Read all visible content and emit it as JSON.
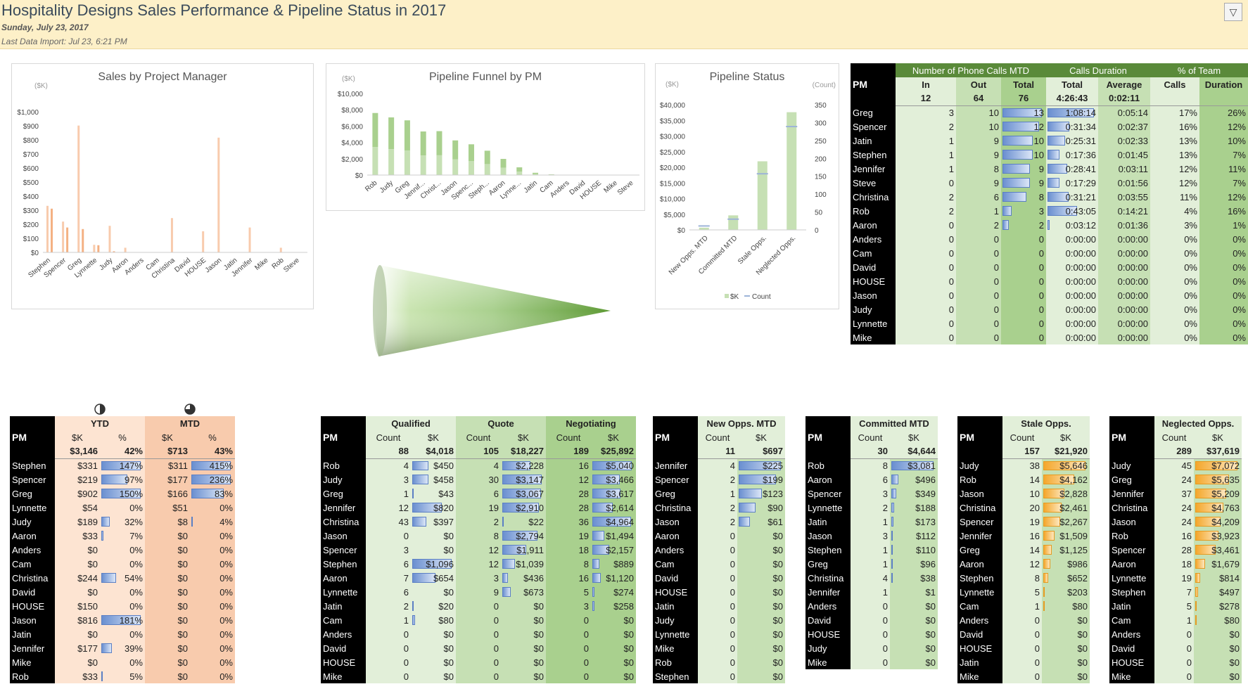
{
  "header": {
    "title": "Hospitality Designs Sales Performance & Pipeline Status in 2017",
    "date": "Sunday, July 23, 2017",
    "import": "Last Data Import: Jul 23, 6:21 PM",
    "filter_icon": "▽"
  },
  "chart_data": [
    {
      "type": "bar",
      "title": "Sales by Project Manager",
      "ylabel": "($K)",
      "categories": [
        "Stephen",
        "Spencer",
        "Greg",
        "Lynnette",
        "Judy",
        "Aaron",
        "Anders",
        "Cam",
        "Christina",
        "David",
        "HOUSE",
        "Jason",
        "Jatin",
        "Jennifer",
        "Mike",
        "Rob",
        "Steve"
      ],
      "ylim": [
        0,
        1000
      ],
      "yticks": [
        "$0",
        "$100",
        "$200",
        "$300",
        "$400",
        "$500",
        "$600",
        "$700",
        "$800",
        "$900",
        "$1,000"
      ],
      "series": [
        {
          "values": [
            331,
            219,
            902,
            54,
            189,
            33,
            0,
            0,
            244,
            0,
            150,
            816,
            0,
            177,
            0,
            33,
            0
          ]
        },
        {
          "values": [
            311,
            177,
            166,
            51,
            8,
            0,
            0,
            0,
            0,
            0,
            0,
            0,
            0,
            0,
            0,
            0,
            0
          ]
        }
      ]
    },
    {
      "type": "bar",
      "title": "Pipeline Funnel by PM",
      "ylabel": "($K)",
      "categories": [
        "Rob",
        "Judy",
        "Greg",
        "Jennif...",
        "Christ...",
        "Jason",
        "Spenc...",
        "Steph...",
        "Aaron",
        "Lynne...",
        "Jatin",
        "Cam",
        "Anders",
        "David",
        "HOUSE",
        "Mike",
        "Steve"
      ],
      "ylim": [
        0,
        10000
      ],
      "yticks": [
        "$0",
        "$2,000",
        "$4,000",
        "$6,000",
        "$8,000",
        "$10,000"
      ],
      "series": [
        {
          "values": [
            7610,
            7071,
            6710,
            5344,
            5384,
            4249,
            3771,
            2986,
            1980,
            947,
            278,
            80,
            0,
            0,
            0,
            0,
            0
          ]
        }
      ]
    },
    {
      "type": "bar",
      "title": "Pipeline Status",
      "ylabel": "($K)",
      "y2label": "(Count)",
      "categories": [
        "New Opps. MTD",
        "Committed MTD",
        "Stale Opps.",
        "Neglected Opps."
      ],
      "ylim": [
        0,
        40000
      ],
      "y2lim": [
        0,
        350
      ],
      "yticks": [
        "$0",
        "$5,000",
        "$10,000",
        "$15,000",
        "$20,000",
        "$25,000",
        "$30,000",
        "$35,000",
        "$40,000"
      ],
      "y2ticks": [
        "0",
        "50",
        "100",
        "150",
        "200",
        "250",
        "300",
        "350"
      ],
      "legend": [
        "$K",
        "Count"
      ],
      "series": [
        {
          "name": "$K",
          "values": [
            697,
            4644,
            21920,
            37619
          ]
        },
        {
          "name": "Count",
          "values": [
            11,
            30,
            157,
            289
          ]
        }
      ]
    }
  ],
  "calls": {
    "pm_label": "PM",
    "group_headers": [
      "Number of Phone Calls MTD",
      "Calls Duration",
      "% of Team"
    ],
    "col_headers": [
      "In",
      "Out",
      "Total",
      "Total",
      "Average",
      "Calls",
      "Duration"
    ],
    "totals": [
      "12",
      "64",
      "76",
      "4:26:43",
      "0:02:11",
      "",
      ""
    ],
    "rows": [
      [
        "Greg",
        "3",
        "10",
        "13",
        "1:08:14",
        "0:05:14",
        "17%",
        "26%"
      ],
      [
        "Spencer",
        "2",
        "10",
        "12",
        "0:31:34",
        "0:02:37",
        "16%",
        "12%"
      ],
      [
        "Jatin",
        "1",
        "9",
        "10",
        "0:25:31",
        "0:02:33",
        "13%",
        "10%"
      ],
      [
        "Stephen",
        "1",
        "9",
        "10",
        "0:17:36",
        "0:01:45",
        "13%",
        "7%"
      ],
      [
        "Jennifer",
        "1",
        "8",
        "9",
        "0:28:41",
        "0:03:11",
        "12%",
        "11%"
      ],
      [
        "Steve",
        "0",
        "9",
        "9",
        "0:17:29",
        "0:01:56",
        "12%",
        "7%"
      ],
      [
        "Christina",
        "2",
        "6",
        "8",
        "0:31:21",
        "0:03:55",
        "11%",
        "12%"
      ],
      [
        "Rob",
        "2",
        "1",
        "3",
        "0:43:05",
        "0:14:21",
        "4%",
        "16%"
      ],
      [
        "Aaron",
        "0",
        "2",
        "2",
        "0:03:12",
        "0:01:36",
        "3%",
        "1%"
      ],
      [
        "Anders",
        "0",
        "0",
        "0",
        "0:00:00",
        "0:00:00",
        "0%",
        "0%"
      ],
      [
        "Cam",
        "0",
        "0",
        "0",
        "0:00:00",
        "0:00:00",
        "0%",
        "0%"
      ],
      [
        "David",
        "0",
        "0",
        "0",
        "0:00:00",
        "0:00:00",
        "0%",
        "0%"
      ],
      [
        "HOUSE",
        "0",
        "0",
        "0",
        "0:00:00",
        "0:00:00",
        "0%",
        "0%"
      ],
      [
        "Jason",
        "0",
        "0",
        "0",
        "0:00:00",
        "0:00:00",
        "0%",
        "0%"
      ],
      [
        "Judy",
        "0",
        "0",
        "0",
        "0:00:00",
        "0:00:00",
        "0%",
        "0%"
      ],
      [
        "Lynnette",
        "0",
        "0",
        "0",
        "0:00:00",
        "0:00:00",
        "0%",
        "0%"
      ],
      [
        "Mike",
        "0",
        "0",
        "0",
        "0:00:00",
        "0:00:00",
        "0%",
        "0%"
      ]
    ]
  },
  "sales": {
    "pm_label": "PM",
    "ytd_label": "YTD",
    "mtd_label": "MTD",
    "sub": [
      "$K",
      "%",
      "$K",
      "%"
    ],
    "totals": [
      "$3,146",
      "42%",
      "$713",
      "43%"
    ],
    "rows": [
      [
        "Stephen",
        "$331",
        "147%",
        "$311",
        "415%"
      ],
      [
        "Spencer",
        "$219",
        "97%",
        "$177",
        "236%"
      ],
      [
        "Greg",
        "$902",
        "150%",
        "$166",
        "83%"
      ],
      [
        "Lynnette",
        "$54",
        "0%",
        "$51",
        "0%"
      ],
      [
        "Judy",
        "$189",
        "32%",
        "$8",
        "4%"
      ],
      [
        "Aaron",
        "$33",
        "7%",
        "$0",
        "0%"
      ],
      [
        "Anders",
        "$0",
        "0%",
        "$0",
        "0%"
      ],
      [
        "Cam",
        "$0",
        "0%",
        "$0",
        "0%"
      ],
      [
        "Christina",
        "$244",
        "54%",
        "$0",
        "0%"
      ],
      [
        "David",
        "$0",
        "0%",
        "$0",
        "0%"
      ],
      [
        "HOUSE",
        "$150",
        "0%",
        "$0",
        "0%"
      ],
      [
        "Jason",
        "$816",
        "181%",
        "$0",
        "0%"
      ],
      [
        "Jatin",
        "$0",
        "0%",
        "$0",
        "0%"
      ],
      [
        "Jennifer",
        "$177",
        "39%",
        "$0",
        "0%"
      ],
      [
        "Mike",
        "$0",
        "0%",
        "$0",
        "0%"
      ],
      [
        "Rob",
        "$33",
        "5%",
        "$0",
        "0%"
      ]
    ],
    "ytd_pct_fill": [
      1.0,
      0.66,
      1.0,
      0,
      0.22,
      0.05,
      0,
      0,
      0.37,
      0,
      0,
      1.0,
      0,
      0.27,
      0,
      0.03
    ],
    "mtd_pct_fill": [
      1.0,
      1.0,
      0.83,
      0,
      0.04,
      0,
      0,
      0,
      0,
      0,
      0,
      0,
      0,
      0,
      0,
      0
    ]
  },
  "funnel": {
    "pm_label": "PM",
    "groups": [
      "Qualified",
      "Quote",
      "Negotiating"
    ],
    "sub": [
      "Count",
      "$K",
      "Count",
      "$K",
      "Count",
      "$K"
    ],
    "totals": [
      "88",
      "$4,018",
      "105",
      "$18,227",
      "189",
      "$25,892"
    ],
    "rows": [
      [
        "Rob",
        "4",
        "$450",
        "4",
        "$2,228",
        "16",
        "$5,040"
      ],
      [
        "Judy",
        "3",
        "$458",
        "30",
        "$3,147",
        "12",
        "$3,466"
      ],
      [
        "Greg",
        "1",
        "$43",
        "6",
        "$3,067",
        "28",
        "$3,617"
      ],
      [
        "Jennifer",
        "12",
        "$820",
        "19",
        "$2,910",
        "28",
        "$2,614"
      ],
      [
        "Christina",
        "43",
        "$397",
        "2",
        "$22",
        "36",
        "$4,964"
      ],
      [
        "Jason",
        "0",
        "$0",
        "8",
        "$2,794",
        "19",
        "$1,494"
      ],
      [
        "Spencer",
        "3",
        "$0",
        "12",
        "$1,911",
        "18",
        "$2,157"
      ],
      [
        "Stephen",
        "6",
        "$1,096",
        "12",
        "$1,039",
        "8",
        "$889"
      ],
      [
        "Aaron",
        "7",
        "$654",
        "3",
        "$436",
        "16",
        "$1,120"
      ],
      [
        "Lynnette",
        "6",
        "$0",
        "9",
        "$673",
        "5",
        "$274"
      ],
      [
        "Jatin",
        "2",
        "$20",
        "0",
        "$0",
        "3",
        "$258"
      ],
      [
        "Cam",
        "1",
        "$80",
        "0",
        "$0",
        "0",
        "$0"
      ],
      [
        "Anders",
        "0",
        "$0",
        "0",
        "$0",
        "0",
        "$0"
      ],
      [
        "David",
        "0",
        "$0",
        "0",
        "$0",
        "0",
        "$0"
      ],
      [
        "HOUSE",
        "0",
        "$0",
        "0",
        "$0",
        "0",
        "$0"
      ],
      [
        "Mike",
        "0",
        "$0",
        "0",
        "$0",
        "0",
        "$0"
      ]
    ]
  },
  "newopps": {
    "pm_label": "PM",
    "title": "New Opps. MTD",
    "sub": [
      "Count",
      "$K"
    ],
    "totals": [
      "11",
      "$697"
    ],
    "rows": [
      [
        "Jennifer",
        "4",
        "$225"
      ],
      [
        "Spencer",
        "2",
        "$199"
      ],
      [
        "Greg",
        "1",
        "$123"
      ],
      [
        "Christina",
        "2",
        "$90"
      ],
      [
        "Jason",
        "2",
        "$61"
      ],
      [
        "Aaron",
        "0",
        "$0"
      ],
      [
        "Anders",
        "0",
        "$0"
      ],
      [
        "Cam",
        "0",
        "$0"
      ],
      [
        "David",
        "0",
        "$0"
      ],
      [
        "HOUSE",
        "0",
        "$0"
      ],
      [
        "Jatin",
        "0",
        "$0"
      ],
      [
        "Judy",
        "0",
        "$0"
      ],
      [
        "Lynnette",
        "0",
        "$0"
      ],
      [
        "Mike",
        "0",
        "$0"
      ],
      [
        "Rob",
        "0",
        "$0"
      ],
      [
        "Stephen",
        "0",
        "$0"
      ]
    ],
    "fill": [
      1.0,
      0.88,
      0.55,
      0.4,
      0.27,
      0,
      0,
      0,
      0,
      0,
      0,
      0,
      0,
      0,
      0,
      0
    ]
  },
  "committed": {
    "pm_label": "PM",
    "title": "Committed MTD",
    "sub": [
      "Count",
      "$K"
    ],
    "totals": [
      "30",
      "$4,644"
    ],
    "rows": [
      [
        "Rob",
        "8",
        "$3,081"
      ],
      [
        "Aaron",
        "6",
        "$496"
      ],
      [
        "Spencer",
        "3",
        "$349"
      ],
      [
        "Lynnette",
        "2",
        "$188"
      ],
      [
        "Jatin",
        "1",
        "$173"
      ],
      [
        "Jason",
        "3",
        "$112"
      ],
      [
        "Stephen",
        "1",
        "$110"
      ],
      [
        "Greg",
        "1",
        "$96"
      ],
      [
        "Christina",
        "4",
        "$38"
      ],
      [
        "Jennifer",
        "1",
        "$1"
      ],
      [
        "Anders",
        "0",
        "$0"
      ],
      [
        "David",
        "0",
        "$0"
      ],
      [
        "HOUSE",
        "0",
        "$0"
      ],
      [
        "Judy",
        "0",
        "$0"
      ],
      [
        "Mike",
        "0",
        "$0"
      ]
    ],
    "fill": [
      1.0,
      0.16,
      0.11,
      0.06,
      0.056,
      0.036,
      0.036,
      0.031,
      0.012,
      0,
      0,
      0,
      0,
      0,
      0
    ]
  },
  "stale": {
    "pm_label": "PM",
    "title": "Stale Opps.",
    "sub": [
      "Count",
      "$K"
    ],
    "totals": [
      "157",
      "$21,920"
    ],
    "rows": [
      [
        "Judy",
        "38",
        "$5,646"
      ],
      [
        "Rob",
        "14",
        "$4,162"
      ],
      [
        "Jason",
        "10",
        "$2,828"
      ],
      [
        "Christina",
        "20",
        "$2,461"
      ],
      [
        "Spencer",
        "19",
        "$2,267"
      ],
      [
        "Jennifer",
        "16",
        "$1,509"
      ],
      [
        "Greg",
        "14",
        "$1,125"
      ],
      [
        "Aaron",
        "12",
        "$986"
      ],
      [
        "Stephen",
        "8",
        "$652"
      ],
      [
        "Lynnette",
        "5",
        "$203"
      ],
      [
        "Cam",
        "1",
        "$80"
      ],
      [
        "Anders",
        "0",
        "$0"
      ],
      [
        "David",
        "0",
        "$0"
      ],
      [
        "HOUSE",
        "0",
        "$0"
      ],
      [
        "Jatin",
        "0",
        "$0"
      ],
      [
        "Mike",
        "0",
        "$0"
      ]
    ],
    "fill": [
      1.0,
      0.74,
      0.5,
      0.44,
      0.4,
      0.27,
      0.2,
      0.17,
      0.12,
      0.04,
      0.014,
      0,
      0,
      0,
      0,
      0
    ]
  },
  "neglected": {
    "pm_label": "PM",
    "title": "Neglected Opps.",
    "sub": [
      "Count",
      "$K"
    ],
    "totals": [
      "289",
      "$37,619"
    ],
    "rows": [
      [
        "Judy",
        "45",
        "$7,072"
      ],
      [
        "Greg",
        "24",
        "$5,635"
      ],
      [
        "Jennifer",
        "37",
        "$5,209"
      ],
      [
        "Christina",
        "24",
        "$4,763"
      ],
      [
        "Jason",
        "24",
        "$4,209"
      ],
      [
        "Rob",
        "16",
        "$3,923"
      ],
      [
        "Spencer",
        "28",
        "$3,461"
      ],
      [
        "Aaron",
        "18",
        "$1,679"
      ],
      [
        "Lynnette",
        "19",
        "$814"
      ],
      [
        "Stephen",
        "7",
        "$497"
      ],
      [
        "Jatin",
        "5",
        "$278"
      ],
      [
        "Cam",
        "1",
        "$80"
      ],
      [
        "Anders",
        "0",
        "$0"
      ],
      [
        "David",
        "0",
        "$0"
      ],
      [
        "HOUSE",
        "0",
        "$0"
      ],
      [
        "Mike",
        "0",
        "$0"
      ]
    ],
    "fill": [
      1.0,
      0.8,
      0.74,
      0.67,
      0.6,
      0.55,
      0.49,
      0.24,
      0.12,
      0.07,
      0.04,
      0.01,
      0,
      0,
      0,
      0
    ]
  },
  "colors": {
    "header_bg": "#fdf0c8",
    "green_header": "#5a8a3a",
    "green_light": "#e2efd9",
    "green_mid": "#c6e0b4",
    "green_dark": "#a9d08e",
    "orange_light": "#fde4d2",
    "orange_dark": "#f8cbad",
    "bar_blue": "#6a8fd0",
    "bar_orange": "#f4a72c"
  },
  "icons": {
    "ytd_status": "◑",
    "mtd_status": "◕"
  }
}
